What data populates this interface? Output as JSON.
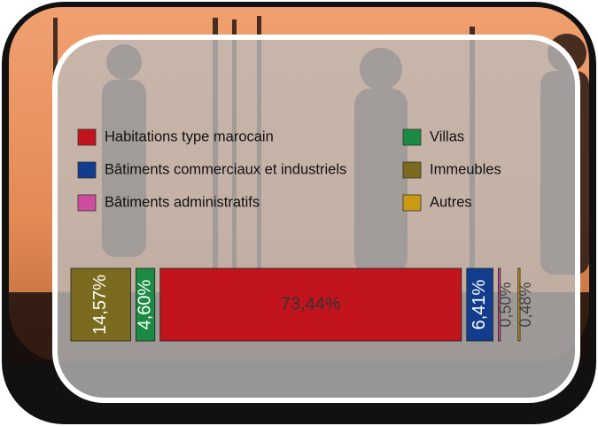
{
  "chart_data": {
    "type": "stacked-bar",
    "series": [
      {
        "name": "Habitations type marocain",
        "color": "#c2141c",
        "values": [
          73.44
        ],
        "value_labels": [
          "73,44%"
        ]
      },
      {
        "name": "Bâtiments commerciaux et industriels",
        "color": "#123d8e",
        "values": [
          6.41
        ],
        "value_labels": [
          "6,41%"
        ]
      },
      {
        "name": "Bâtiments administratifs",
        "color": "#cf4d9e",
        "values": [
          0.5
        ],
        "value_labels": [
          "0,50%"
        ]
      },
      {
        "name": "Villas",
        "color": "#1b8a42",
        "values": [
          4.6
        ],
        "value_labels": [
          "4,60%"
        ]
      },
      {
        "name": "Immeubles",
        "color": "#7b6b1e",
        "values": [
          14.57
        ],
        "value_labels": [
          "14,57%"
        ]
      },
      {
        "name": "Autres",
        "color": "#c99a12",
        "values": [
          0.48
        ],
        "value_labels": [
          "0,48%"
        ]
      }
    ]
  }
}
